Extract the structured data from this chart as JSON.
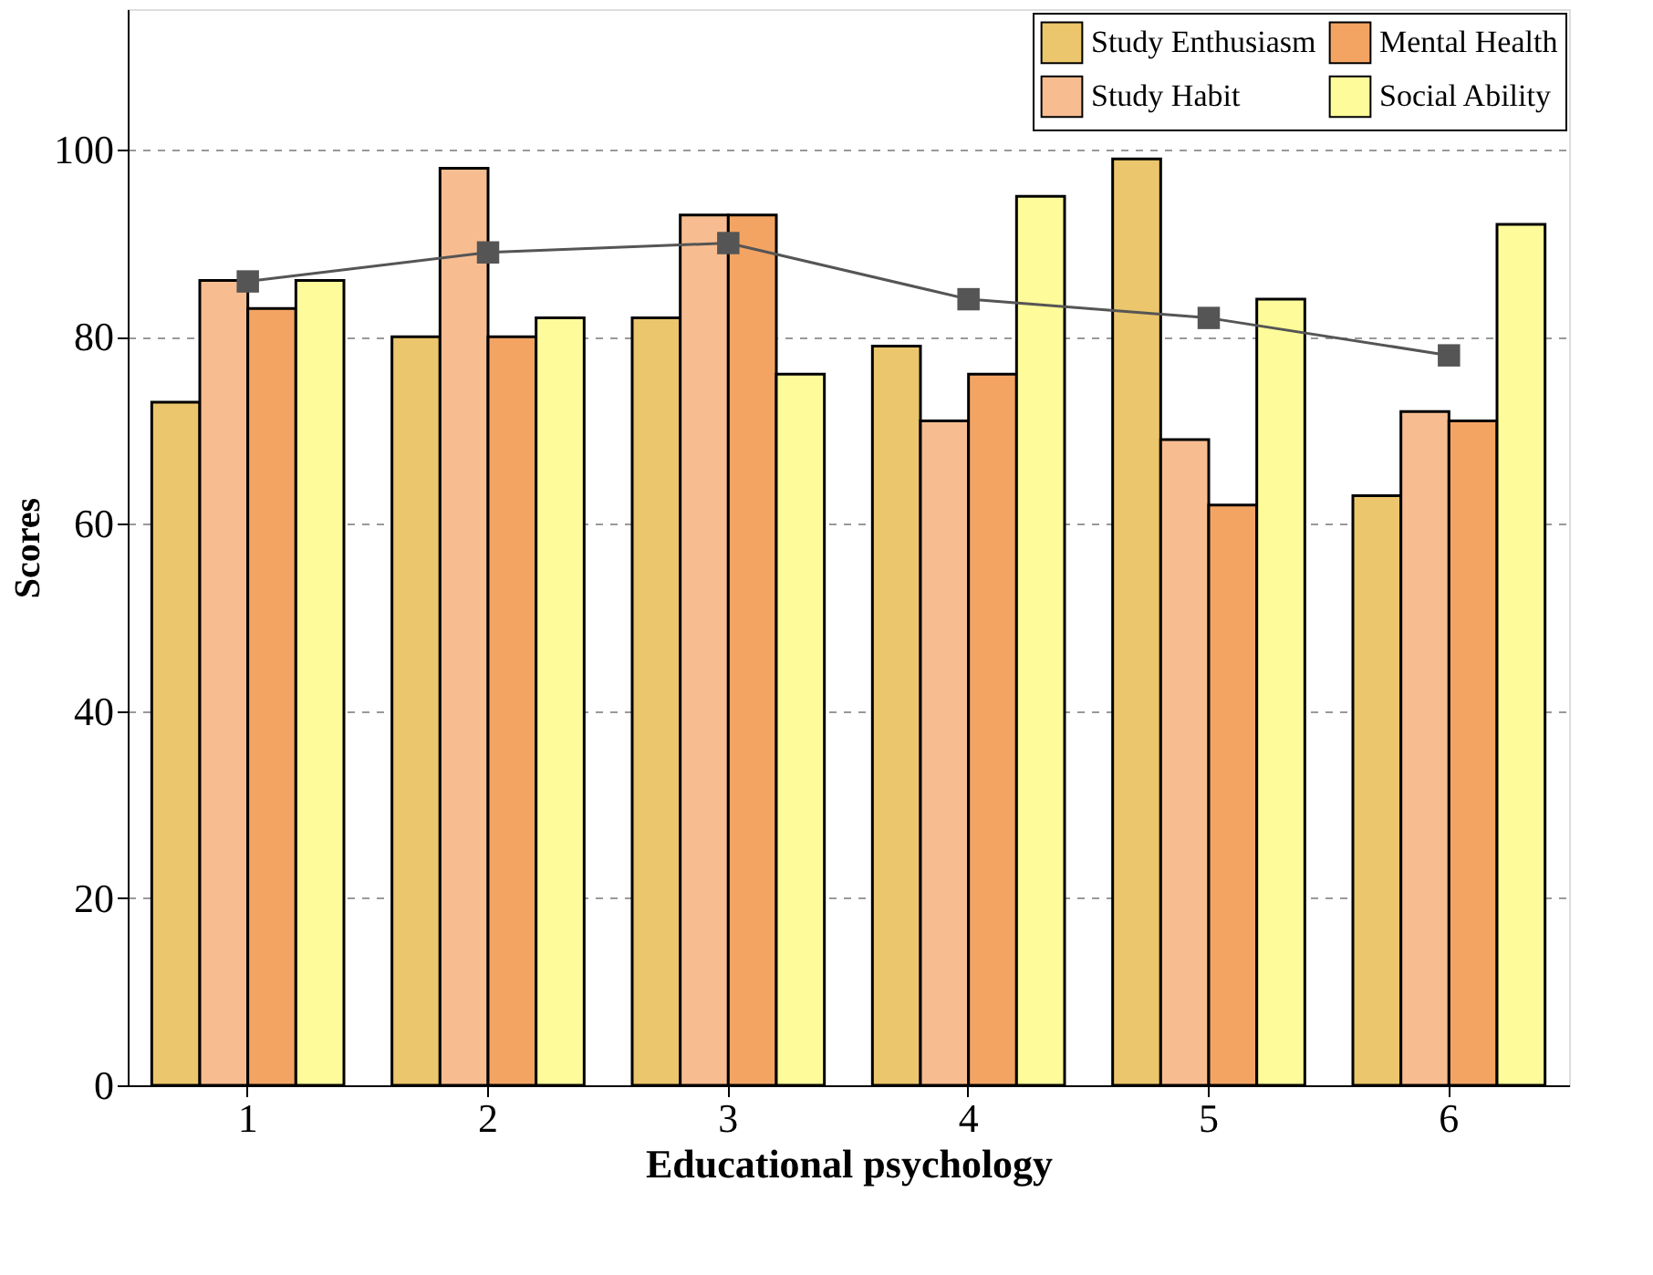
{
  "chart_data": {
    "type": "bar",
    "xlabel": "Educational psychology",
    "ylabel": "Scores",
    "categories": [
      "1",
      "2",
      "3",
      "4",
      "5",
      "6"
    ],
    "series": [
      {
        "name": "Study Enthusiasm",
        "color": "#ebc66c",
        "values": [
          73,
          80,
          82,
          79,
          99,
          63
        ]
      },
      {
        "name": "Study Habit",
        "color": "#f7bd91",
        "values": [
          86,
          98,
          93,
          71,
          69,
          72
        ]
      },
      {
        "name": "Mental Health",
        "color": "#f3a463",
        "values": [
          83,
          80,
          93,
          76,
          62,
          71
        ]
      },
      {
        "name": "Social Ability",
        "color": "#fdfb9a",
        "values": [
          86,
          82,
          76,
          95,
          84,
          92
        ]
      },
      {
        "type": "line",
        "color": "#555555",
        "marker": "square",
        "values": [
          85.9,
          89,
          90,
          84,
          82,
          78
        ]
      }
    ],
    "ylim": [
      0,
      115
    ],
    "yticks": [
      0,
      20,
      40,
      60,
      80,
      100
    ],
    "grid": "y",
    "legend": "top right"
  }
}
